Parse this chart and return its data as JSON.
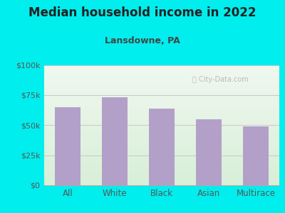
{
  "title": "Median household income in 2022",
  "subtitle": "Lansdowne, PA",
  "categories": [
    "All",
    "White",
    "Black",
    "Asian",
    "Multirace"
  ],
  "values": [
    65000,
    73000,
    64000,
    55000,
    49000
  ],
  "bar_color": "#b3a0c8",
  "background_outer": "#00eeee",
  "plot_bg_top": "#f0f8f0",
  "plot_bg_bottom": "#d8efd8",
  "yticks": [
    0,
    25000,
    50000,
    75000,
    100000
  ],
  "ytick_labels": [
    "$0",
    "$25k",
    "$50k",
    "$75k",
    "$100k"
  ],
  "ylim": [
    0,
    100000
  ],
  "title_color": "#222222",
  "subtitle_color": "#444444",
  "tick_color": "#555555",
  "grid_color": "#c8c8c8",
  "watermark": "City-Data.com",
  "title_fontsize": 12,
  "subtitle_fontsize": 9,
  "tick_fontsize": 8,
  "xlabel_fontsize": 8.5
}
